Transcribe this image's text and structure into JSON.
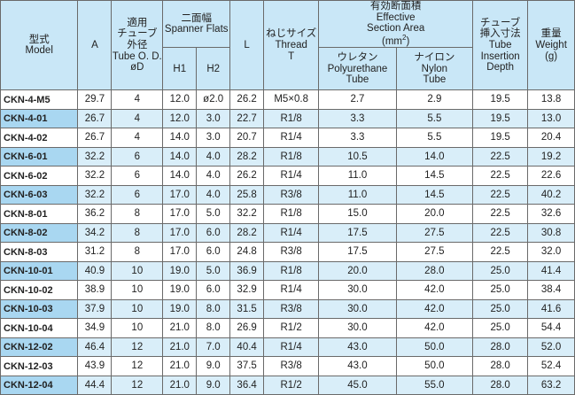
{
  "headers": {
    "model": "型式\nModel",
    "a": "A",
    "tube_od": "適用\nチューブ\n外径\nTube O. D.\nøD",
    "spanner": "二面幅\nSpanner Flats",
    "h1": "H1",
    "h2": "H2",
    "l": "L",
    "thread": "ねじサイズ\nThread\nT",
    "section_area": "有効断面積\nEffective\nSection Area\n(mm",
    "section_area_sup": "2",
    "section_area_close": ")",
    "polyurethane": "ウレタン\nPolyurethane\nTube",
    "nylon": "ナイロン\nNylon\nTube",
    "insertion": "チューブ\n挿入寸法\nTube\nInsertion\nDepth",
    "weight": "重量\nWeight\n(g)"
  },
  "rows": [
    {
      "model": "CKN-4-M5",
      "a": "29.7",
      "od": "4",
      "h1": "12.0",
      "h2": "ø2.0",
      "l": "26.2",
      "thread": "M5×0.8",
      "poly": "2.7",
      "nylon": "2.9",
      "depth": "19.5",
      "weight": "13.8"
    },
    {
      "model": "CKN-4-01",
      "a": "26.7",
      "od": "4",
      "h1": "12.0",
      "h2": "3.0",
      "l": "22.7",
      "thread": "R1/8",
      "poly": "3.3",
      "nylon": "5.5",
      "depth": "19.5",
      "weight": "13.0"
    },
    {
      "model": "CKN-4-02",
      "a": "26.7",
      "od": "4",
      "h1": "14.0",
      "h2": "3.0",
      "l": "20.7",
      "thread": "R1/4",
      "poly": "3.3",
      "nylon": "5.5",
      "depth": "19.5",
      "weight": "20.4"
    },
    {
      "model": "CKN-6-01",
      "a": "32.2",
      "od": "6",
      "h1": "14.0",
      "h2": "4.0",
      "l": "28.2",
      "thread": "R1/8",
      "poly": "10.5",
      "nylon": "14.0",
      "depth": "22.5",
      "weight": "19.2"
    },
    {
      "model": "CKN-6-02",
      "a": "32.2",
      "od": "6",
      "h1": "14.0",
      "h2": "4.0",
      "l": "26.2",
      "thread": "R1/4",
      "poly": "11.0",
      "nylon": "14.5",
      "depth": "22.5",
      "weight": "22.6"
    },
    {
      "model": "CKN-6-03",
      "a": "32.2",
      "od": "6",
      "h1": "17.0",
      "h2": "4.0",
      "l": "25.8",
      "thread": "R3/8",
      "poly": "11.0",
      "nylon": "14.5",
      "depth": "22.5",
      "weight": "40.2"
    },
    {
      "model": "CKN-8-01",
      "a": "36.2",
      "od": "8",
      "h1": "17.0",
      "h2": "5.0",
      "l": "32.2",
      "thread": "R1/8",
      "poly": "15.0",
      "nylon": "20.0",
      "depth": "22.5",
      "weight": "32.6"
    },
    {
      "model": "CKN-8-02",
      "a": "34.2",
      "od": "8",
      "h1": "17.0",
      "h2": "6.0",
      "l": "28.2",
      "thread": "R1/4",
      "poly": "17.5",
      "nylon": "27.5",
      "depth": "22.5",
      "weight": "30.8"
    },
    {
      "model": "CKN-8-03",
      "a": "31.2",
      "od": "8",
      "h1": "17.0",
      "h2": "6.0",
      "l": "24.8",
      "thread": "R3/8",
      "poly": "17.5",
      "nylon": "27.5",
      "depth": "22.5",
      "weight": "32.0"
    },
    {
      "model": "CKN-10-01",
      "a": "40.9",
      "od": "10",
      "h1": "19.0",
      "h2": "5.0",
      "l": "36.9",
      "thread": "R1/8",
      "poly": "20.0",
      "nylon": "28.0",
      "depth": "25.0",
      "weight": "41.4"
    },
    {
      "model": "CKN-10-02",
      "a": "38.9",
      "od": "10",
      "h1": "19.0",
      "h2": "6.0",
      "l": "32.9",
      "thread": "R1/4",
      "poly": "30.0",
      "nylon": "42.0",
      "depth": "25.0",
      "weight": "38.4"
    },
    {
      "model": "CKN-10-03",
      "a": "37.9",
      "od": "10",
      "h1": "19.0",
      "h2": "8.0",
      "l": "31.5",
      "thread": "R3/8",
      "poly": "30.0",
      "nylon": "42.0",
      "depth": "25.0",
      "weight": "41.6"
    },
    {
      "model": "CKN-10-04",
      "a": "34.9",
      "od": "10",
      "h1": "21.0",
      "h2": "8.0",
      "l": "26.9",
      "thread": "R1/2",
      "poly": "30.0",
      "nylon": "42.0",
      "depth": "25.0",
      "weight": "54.4"
    },
    {
      "model": "CKN-12-02",
      "a": "46.4",
      "od": "12",
      "h1": "21.0",
      "h2": "7.0",
      "l": "40.4",
      "thread": "R1/4",
      "poly": "43.0",
      "nylon": "50.0",
      "depth": "28.0",
      "weight": "52.0"
    },
    {
      "model": "CKN-12-03",
      "a": "43.9",
      "od": "12",
      "h1": "21.0",
      "h2": "9.0",
      "l": "37.5",
      "thread": "R3/8",
      "poly": "43.0",
      "nylon": "50.0",
      "depth": "28.0",
      "weight": "52.4"
    },
    {
      "model": "CKN-12-04",
      "a": "44.4",
      "od": "12",
      "h1": "21.0",
      "h2": "9.0",
      "l": "36.4",
      "thread": "R1/2",
      "poly": "45.0",
      "nylon": "55.0",
      "depth": "28.0",
      "weight": "63.2"
    }
  ],
  "colors": {
    "header_bg": "#c9e7f7",
    "alt_row_bg": "#d9eef9",
    "alt_model_bg": "#a9d7f1",
    "border": "#6a6a6a"
  }
}
